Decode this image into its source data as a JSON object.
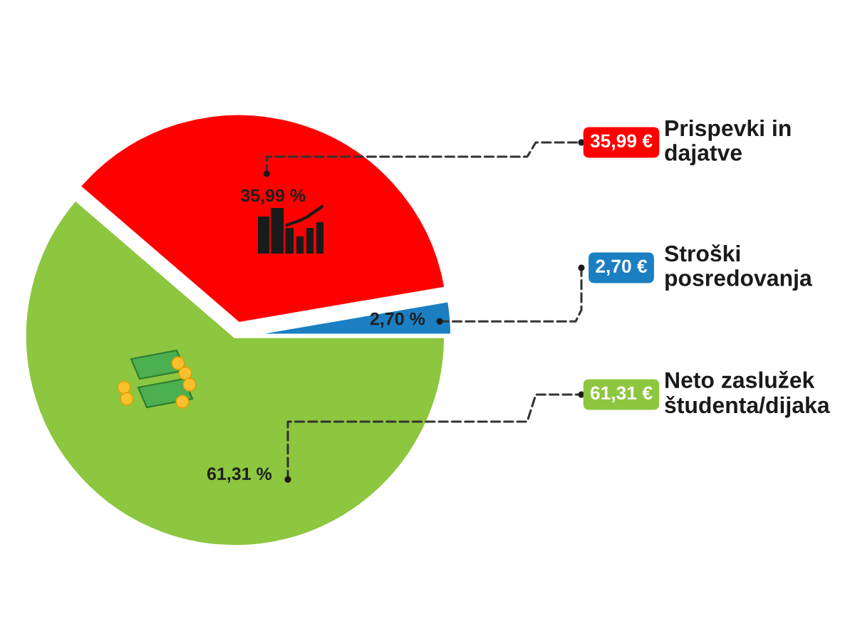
{
  "chart_data": {
    "type": "pie",
    "categories": [
      "Prispevki in dajatve",
      "Stroški posredovanja",
      "Neto zaslužek študenta/dijaka"
    ],
    "values": [
      35.99,
      2.7,
      61.31
    ],
    "colors": [
      "#ff0000",
      "#1b7fc2",
      "#8dc63f"
    ],
    "value_labels": [
      "35,99 %",
      "2,70 %",
      "61,31 %"
    ],
    "annotations": [
      "35,99 €",
      "2,70 €",
      "61,31 €"
    ],
    "legend": "right"
  }
}
